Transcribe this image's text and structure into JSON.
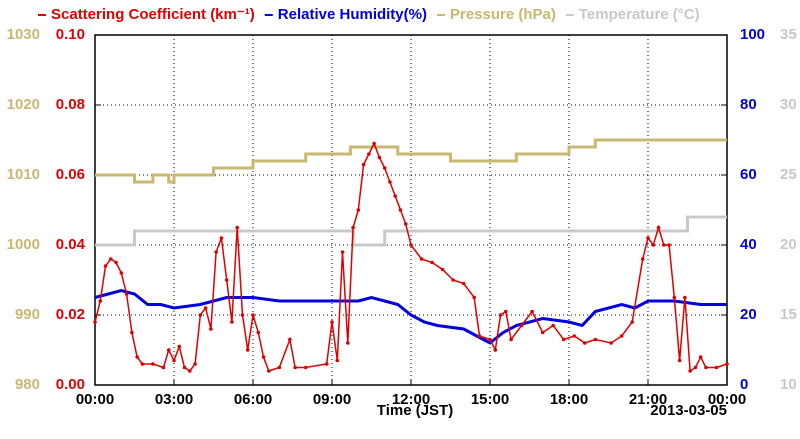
{
  "chart_data": {
    "type": "line",
    "xlabel": "Time (JST)",
    "date_label": "2013-03-05",
    "xlim": [
      0,
      24
    ],
    "xticks": [
      {
        "value": 0,
        "label": "00:00"
      },
      {
        "value": 3,
        "label": "03:00"
      },
      {
        "value": 6,
        "label": "06:00"
      },
      {
        "value": 9,
        "label": "09:00"
      },
      {
        "value": 12,
        "label": "12:00"
      },
      {
        "value": 15,
        "label": "15:00"
      },
      {
        "value": 18,
        "label": "18:00"
      },
      {
        "value": 21,
        "label": "21:00"
      },
      {
        "value": 24,
        "label": "00:00"
      }
    ],
    "ylim": [
      0,
      0.1
    ],
    "yticks": [
      {
        "value": 0,
        "label": "0.00"
      },
      {
        "value": 0.02,
        "label": "0.02"
      },
      {
        "value": 0.04,
        "label": "0.04"
      },
      {
        "value": 0.06,
        "label": "0.06"
      },
      {
        "value": 0.08,
        "label": "0.08"
      },
      {
        "value": 0.1,
        "label": "0.10"
      }
    ],
    "y2lim": [
      0,
      100
    ],
    "y2ticks": [
      0,
      20,
      40,
      60,
      80,
      100
    ],
    "y3lim": [
      980,
      1030
    ],
    "y3ticks": [
      980,
      990,
      1000,
      1010,
      1020,
      1030
    ],
    "y4lim": [
      10,
      35
    ],
    "y4ticks": [
      10,
      15,
      20,
      25,
      30,
      35
    ],
    "grid": true,
    "series": [
      {
        "name": "Scattering Coefficient (km⁻¹)",
        "color": "#e00000",
        "axis": "y",
        "markers": true,
        "x": [
          0,
          0.2,
          0.4,
          0.6,
          0.8,
          1.0,
          1.2,
          1.4,
          1.6,
          1.8,
          2.2,
          2.6,
          2.8,
          3.0,
          3.2,
          3.4,
          3.6,
          3.8,
          4.0,
          4.2,
          4.4,
          4.6,
          4.8,
          5.0,
          5.2,
          5.4,
          5.6,
          5.8,
          6.0,
          6.2,
          6.4,
          6.6,
          7.0,
          7.4,
          7.6,
          8.0,
          8.8,
          9.0,
          9.2,
          9.4,
          9.6,
          9.8,
          10.0,
          10.2,
          10.4,
          10.6,
          10.8,
          11.0,
          11.2,
          11.4,
          11.6,
          11.8,
          12.0,
          12.4,
          12.8,
          13.2,
          13.6,
          14.0,
          14.4,
          14.6,
          15.0,
          15.2,
          15.4,
          15.6,
          15.8,
          16.2,
          16.6,
          17.0,
          17.4,
          17.8,
          18.2,
          18.6,
          19.0,
          19.6,
          20.0,
          20.4,
          20.8,
          21.0,
          21.2,
          21.4,
          21.6,
          21.8,
          22.0,
          22.2,
          22.4,
          22.6,
          22.8,
          23.0,
          23.2,
          23.6,
          24.0
        ],
        "values": [
          0.018,
          0.024,
          0.034,
          0.036,
          0.035,
          0.032,
          0.026,
          0.015,
          0.008,
          0.006,
          0.006,
          0.005,
          0.01,
          0.007,
          0.011,
          0.005,
          0.004,
          0.006,
          0.02,
          0.022,
          0.016,
          0.038,
          0.042,
          0.03,
          0.018,
          0.045,
          0.02,
          0.01,
          0.02,
          0.015,
          0.008,
          0.004,
          0.005,
          0.013,
          0.005,
          0.005,
          0.006,
          0.018,
          0.007,
          0.038,
          0.012,
          0.045,
          0.05,
          0.063,
          0.066,
          0.069,
          0.065,
          0.062,
          0.058,
          0.054,
          0.05,
          0.046,
          0.04,
          0.036,
          0.035,
          0.033,
          0.03,
          0.029,
          0.025,
          0.014,
          0.013,
          0.01,
          0.02,
          0.021,
          0.013,
          0.017,
          0.021,
          0.015,
          0.017,
          0.013,
          0.014,
          0.012,
          0.013,
          0.012,
          0.014,
          0.018,
          0.036,
          0.042,
          0.04,
          0.045,
          0.04,
          0.04,
          0.025,
          0.007,
          0.025,
          0.004,
          0.005,
          0.008,
          0.005,
          0.005,
          0.006
        ]
      },
      {
        "name": "Relative Humidity(%)",
        "color": "#0000e0",
        "axis": "y2",
        "x": [
          0,
          0.5,
          1,
          1.5,
          2,
          2.5,
          3,
          4,
          5,
          6,
          7,
          8,
          9,
          10,
          10.5,
          11,
          11.5,
          12,
          12.5,
          13,
          14,
          14.5,
          15,
          15.5,
          16,
          17,
          18,
          18.5,
          19,
          20,
          20.5,
          21,
          22,
          23,
          24
        ],
        "values": [
          25,
          26,
          27,
          26,
          23,
          23,
          22,
          23,
          25,
          25,
          24,
          24,
          24,
          24,
          25,
          24,
          23,
          20,
          18,
          17,
          16,
          14,
          12,
          15,
          17,
          19,
          18,
          17,
          21,
          23,
          22,
          24,
          24,
          23,
          23
        ]
      },
      {
        "name": "Pressure (hPa)",
        "color": "#c8b870",
        "axis": "y3",
        "x": [
          0,
          1.5,
          1.5,
          2.2,
          2.2,
          2.8,
          2.8,
          3.0,
          3.0,
          4.5,
          4.5,
          6,
          6,
          8,
          8,
          9.7,
          9.7,
          11.5,
          11.5,
          13.5,
          13.5,
          16,
          16,
          18,
          18,
          19,
          19,
          24
        ],
        "values": [
          1010,
          1010,
          1009,
          1009,
          1010,
          1010,
          1009,
          1009,
          1010,
          1010,
          1011,
          1011,
          1012,
          1012,
          1013,
          1013,
          1014,
          1014,
          1013,
          1013,
          1012,
          1012,
          1013,
          1013,
          1014,
          1014,
          1015,
          1015
        ]
      },
      {
        "name": "Temperature (°C)",
        "color": "#c8c8c8",
        "axis": "y4",
        "x": [
          0,
          1.5,
          1.5,
          9.8,
          9.8,
          11,
          11,
          22.5,
          22.5,
          24
        ],
        "values": [
          20,
          20,
          21,
          21,
          20,
          20,
          21,
          21,
          22,
          22
        ]
      }
    ]
  }
}
